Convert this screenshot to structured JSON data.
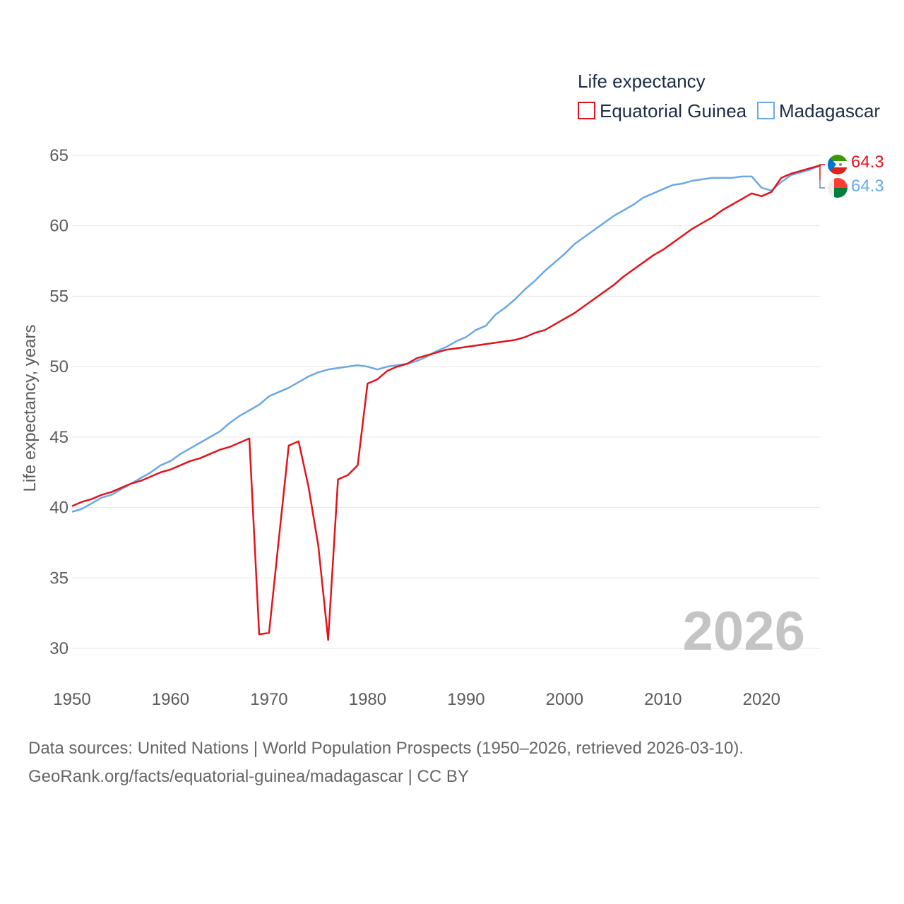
{
  "chart_data": {
    "type": "line",
    "legend_title": "Life expectancy",
    "ylabel": "Life expectancy, years",
    "xlabel": "",
    "xlim": [
      1950,
      2026
    ],
    "ylim": [
      28,
      66
    ],
    "x_ticks": [
      1950,
      1960,
      1970,
      1980,
      1990,
      2000,
      2010,
      2020
    ],
    "y_ticks": [
      30,
      35,
      40,
      45,
      50,
      55,
      60,
      65
    ],
    "grid": true,
    "legend_position": "top-right",
    "year_stamp": "2026",
    "x": [
      1950,
      1951,
      1952,
      1953,
      1954,
      1955,
      1956,
      1957,
      1958,
      1959,
      1960,
      1961,
      1962,
      1963,
      1964,
      1965,
      1966,
      1967,
      1968,
      1969,
      1970,
      1971,
      1972,
      1973,
      1974,
      1975,
      1976,
      1977,
      1978,
      1979,
      1980,
      1981,
      1982,
      1983,
      1984,
      1985,
      1986,
      1987,
      1988,
      1989,
      1990,
      1991,
      1992,
      1993,
      1994,
      1995,
      1996,
      1997,
      1998,
      1999,
      2000,
      2001,
      2002,
      2003,
      2004,
      2005,
      2006,
      2007,
      2008,
      2009,
      2010,
      2011,
      2012,
      2013,
      2014,
      2015,
      2016,
      2017,
      2018,
      2019,
      2020,
      2021,
      2022,
      2023,
      2024,
      2025,
      2026
    ],
    "series": [
      {
        "name": "Equatorial Guinea",
        "color": "#e3131b",
        "end_label": "64.3",
        "values": [
          40.1,
          40.4,
          40.6,
          40.9,
          41.1,
          41.4,
          41.7,
          41.9,
          42.2,
          42.5,
          42.7,
          43.0,
          43.3,
          43.5,
          43.8,
          44.1,
          44.3,
          44.6,
          44.9,
          31.0,
          31.1,
          37.8,
          44.4,
          44.7,
          41.5,
          37.3,
          30.6,
          42.0,
          42.3,
          43.0,
          48.8,
          49.1,
          49.7,
          50.0,
          50.2,
          50.6,
          50.8,
          51.0,
          51.2,
          51.3,
          51.4,
          51.5,
          51.6,
          51.7,
          51.8,
          51.9,
          52.1,
          52.4,
          52.6,
          53.0,
          53.4,
          53.8,
          54.3,
          54.8,
          55.3,
          55.8,
          56.4,
          56.9,
          57.4,
          57.9,
          58.3,
          58.8,
          59.3,
          59.8,
          60.2,
          60.6,
          61.1,
          61.5,
          61.9,
          62.3,
          62.1,
          62.4,
          63.4,
          63.7,
          63.9,
          64.1,
          64.3
        ]
      },
      {
        "name": "Madagascar",
        "color": "#6aa9e6",
        "end_label": "64.3",
        "values": [
          39.7,
          39.9,
          40.3,
          40.7,
          40.9,
          41.3,
          41.7,
          42.1,
          42.5,
          43.0,
          43.3,
          43.8,
          44.2,
          44.6,
          45.0,
          45.4,
          46.0,
          46.5,
          46.9,
          47.3,
          47.9,
          48.2,
          48.5,
          48.9,
          49.3,
          49.6,
          49.8,
          49.9,
          50.0,
          50.1,
          50.0,
          49.8,
          50.0,
          50.1,
          50.2,
          50.4,
          50.7,
          51.1,
          51.4,
          51.8,
          52.1,
          52.6,
          52.9,
          53.7,
          54.2,
          54.8,
          55.5,
          56.1,
          56.8,
          57.4,
          58.0,
          58.7,
          59.2,
          59.7,
          60.2,
          60.7,
          61.1,
          61.5,
          62.0,
          62.3,
          62.6,
          62.9,
          63.0,
          63.2,
          63.3,
          63.4,
          63.4,
          63.4,
          63.5,
          63.5,
          62.7,
          62.5,
          63.1,
          63.6,
          63.8,
          64.0,
          64.3
        ]
      }
    ]
  },
  "footer": {
    "line1": "Data sources: United Nations | World Population Prospects (1950–2026, retrieved 2026-03-10).",
    "line2": "GeoRank.org/facts/equatorial-guinea/madagascar | CC BY"
  }
}
